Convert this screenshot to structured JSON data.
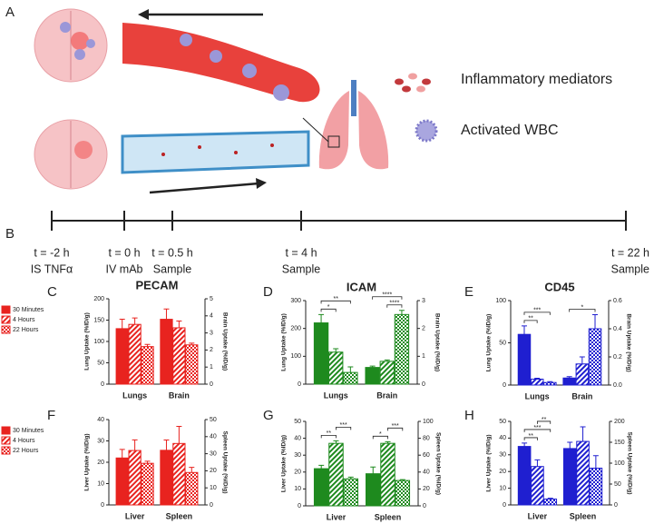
{
  "figure": {
    "panel_a": {
      "label": "A",
      "legend": [
        "Inflammatory mediators",
        "Activated WBC"
      ]
    },
    "panel_b": {
      "label": "B",
      "events": [
        {
          "time": "t = -2 h",
          "event": "IS TNFα"
        },
        {
          "time": "t = 0 h",
          "event": "IV mAb"
        },
        {
          "time": "t = 0.5 h",
          "event": "Sample"
        },
        {
          "time": "t = 4 h",
          "event": "Sample"
        },
        {
          "time": "t = 22 h",
          "event": "Sample"
        }
      ]
    }
  },
  "chart_data": [
    {
      "type": "bar",
      "panel": "C",
      "title": "PECAM",
      "legend": true,
      "ylabel": "Lung Uptake (%ID/g)",
      "y2label": "Brain Uptake (%ID/g)",
      "categories": [
        "Lungs",
        "Brain"
      ],
      "category_axis": [
        "y",
        "y2"
      ],
      "ylim": [
        0,
        200
      ],
      "yticks": [
        0,
        50,
        100,
        150,
        200
      ],
      "y2lim": [
        0,
        5
      ],
      "y2ticks": [
        0,
        1,
        2,
        3,
        4,
        5
      ],
      "fills": [
        "solid",
        "diagonal",
        "cross"
      ],
      "series": [
        {
          "name": "30 Minutes",
          "color": "#e8231f",
          "values": [
            130,
            3.8
          ],
          "errors": [
            22,
            0.6
          ]
        },
        {
          "name": "4 Hours",
          "color": "#e8231f",
          "values": [
            140,
            3.3
          ],
          "errors": [
            15,
            0.4
          ]
        },
        {
          "name": "22 Hours",
          "color": "#e8231f",
          "values": [
            88,
            2.3
          ],
          "errors": [
            5,
            0.1
          ]
        }
      ],
      "annotations": []
    },
    {
      "type": "bar",
      "panel": "D",
      "title": "ICAM",
      "legend": false,
      "ylabel": "Lung Uptake (%ID/g)",
      "y2label": "Brain Uptake (%ID/g)",
      "categories": [
        "Lungs",
        "Brain"
      ],
      "category_axis": [
        "y",
        "y2"
      ],
      "ylim": [
        0,
        300
      ],
      "yticks": [
        0,
        100,
        200,
        300
      ],
      "y2lim": [
        0,
        3
      ],
      "y2ticks": [
        0,
        1,
        2,
        3
      ],
      "fills": [
        "solid",
        "diagonal",
        "cross"
      ],
      "series": [
        {
          "color": "#1e8a1e",
          "values": [
            220,
            0.6
          ],
          "errors": [
            30,
            0.05
          ]
        },
        {
          "color": "#1e8a1e",
          "values": [
            115,
            0.82
          ],
          "errors": [
            12,
            0.05
          ]
        },
        {
          "color": "#1e8a1e",
          "values": [
            42,
            2.5
          ],
          "errors": [
            20,
            0.15
          ]
        }
      ],
      "annotations": [
        {
          "text": "*",
          "category": 0,
          "from": 0,
          "to": 1
        },
        {
          "text": "**",
          "category": 0,
          "from": 0,
          "to": 2
        },
        {
          "text": "****",
          "category": 1,
          "from": 1,
          "to": 2
        },
        {
          "text": "****",
          "category": 1,
          "from": 0,
          "to": 2
        }
      ]
    },
    {
      "type": "bar",
      "panel": "E",
      "title": "CD45",
      "legend": false,
      "ylabel": "Lung Uptake (%ID/g)",
      "y2label": "Brain Uptake (%ID/g)",
      "categories": [
        "Lungs",
        "Brain"
      ],
      "category_axis": [
        "y",
        "y2"
      ],
      "ylim": [
        0,
        100
      ],
      "yticks": [
        0,
        50,
        100
      ],
      "y2lim": [
        0,
        0.6
      ],
      "y2ticks": [
        {
          "value": 0,
          "label": "0.0"
        },
        0.2,
        0.4,
        0.6
      ],
      "fills": [
        "solid",
        "diagonal",
        "cross"
      ],
      "series": [
        {
          "color": "#1f1fd0",
          "values": [
            60,
            0.05
          ],
          "errors": [
            10,
            0.01
          ]
        },
        {
          "color": "#1f1fd0",
          "values": [
            7,
            0.15
          ],
          "errors": [
            1,
            0.05
          ]
        },
        {
          "color": "#1f1fd0",
          "values": [
            3,
            0.4
          ],
          "errors": [
            1,
            0.1
          ]
        }
      ],
      "annotations": [
        {
          "text": "**",
          "category": 0,
          "from": 0,
          "to": 1
        },
        {
          "text": "***",
          "category": 0,
          "from": 0,
          "to": 2
        },
        {
          "text": "*",
          "category": 1,
          "from": 0,
          "to": 2
        }
      ]
    },
    {
      "type": "bar",
      "panel": "F",
      "legend": true,
      "ylabel": "Liver Uptake (%ID/g)",
      "y2label": "Spleen Uptake (%ID/g)",
      "categories": [
        "Liver",
        "Spleen"
      ],
      "category_axis": [
        "y",
        "y2"
      ],
      "ylim": [
        0,
        40
      ],
      "yticks": [
        0,
        10,
        20,
        30,
        40
      ],
      "y2lim": [
        0,
        50
      ],
      "y2ticks": [
        0,
        10,
        20,
        30,
        40,
        50
      ],
      "fills": [
        "solid",
        "diagonal",
        "cross"
      ],
      "series": [
        {
          "name": "30 Minutes",
          "color": "#e8231f",
          "values": [
            22,
            32
          ],
          "errors": [
            4,
            6
          ]
        },
        {
          "name": "4 Hours",
          "color": "#e8231f",
          "values": [
            25.5,
            36
          ],
          "errors": [
            5,
            10
          ]
        },
        {
          "name": "22 Hours",
          "color": "#e8231f",
          "values": [
            19.5,
            19
          ],
          "errors": [
            1,
            3
          ]
        }
      ],
      "annotations": []
    },
    {
      "type": "bar",
      "panel": "G",
      "legend": false,
      "ylabel": "Liver Uptake (%ID/g)",
      "y2label": "Spleen Uptake (%ID/g)",
      "categories": [
        "Liver",
        "Spleen"
      ],
      "category_axis": [
        "y",
        "y2"
      ],
      "ylim": [
        0,
        50
      ],
      "yticks": [
        0,
        10,
        20,
        30,
        40,
        50
      ],
      "y2lim": [
        0,
        100
      ],
      "y2ticks": [
        0,
        20,
        40,
        60,
        80,
        100
      ],
      "fills": [
        "solid",
        "diagonal",
        "cross"
      ],
      "series": [
        {
          "color": "#1e8a1e",
          "values": [
            22,
            38
          ],
          "errors": [
            2,
            8
          ]
        },
        {
          "color": "#1e8a1e",
          "values": [
            37,
            74
          ],
          "errors": [
            1.5,
            2
          ]
        },
        {
          "color": "#1e8a1e",
          "values": [
            16,
            30
          ],
          "errors": [
            1,
            1
          ]
        }
      ],
      "annotations": [
        {
          "text": "**",
          "category": 0,
          "from": 0,
          "to": 1
        },
        {
          "text": "***",
          "category": 0,
          "from": 1,
          "to": 2
        },
        {
          "text": "*",
          "category": 1,
          "from": 0,
          "to": 1
        },
        {
          "text": "***",
          "category": 1,
          "from": 1,
          "to": 2
        }
      ]
    },
    {
      "type": "bar",
      "panel": "H",
      "legend": false,
      "ylabel": "Liver Uptake (%ID/g)",
      "y2label": "Spleen Uptake (%ID/g)",
      "categories": [
        "Liver",
        "Spleen"
      ],
      "category_axis": [
        "y",
        "y2"
      ],
      "ylim": [
        0,
        50
      ],
      "yticks": [
        0,
        10,
        20,
        30,
        40,
        50
      ],
      "y2lim": [
        0,
        200
      ],
      "y2ticks": [
        0,
        50,
        100,
        150,
        200
      ],
      "fills": [
        "solid",
        "diagonal",
        "cross"
      ],
      "series": [
        {
          "color": "#1f1fd0",
          "values": [
            35,
            135
          ],
          "errors": [
            2,
            15
          ]
        },
        {
          "color": "#1f1fd0",
          "values": [
            23,
            152
          ],
          "errors": [
            4,
            35
          ]
        },
        {
          "color": "#1f1fd0",
          "values": [
            3.5,
            88
          ],
          "errors": [
            0.5,
            30
          ]
        }
      ],
      "annotations": [
        {
          "text": "**",
          "category": 0,
          "from": 0,
          "to": 1
        },
        {
          "text": "***",
          "category": 0,
          "from": 0,
          "to": 2
        },
        {
          "text": "**",
          "category": 0,
          "from": 1,
          "to": 2
        }
      ]
    }
  ]
}
